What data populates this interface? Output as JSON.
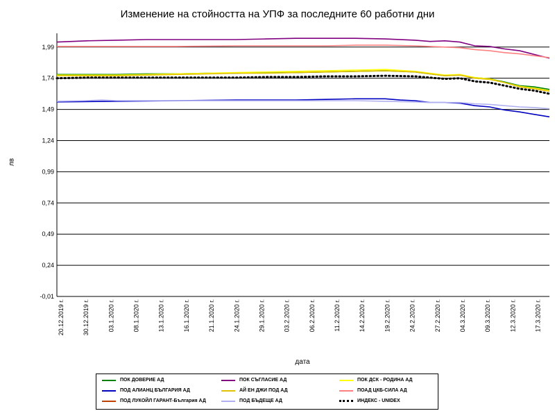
{
  "chart_data": {
    "type": "line",
    "title": "Изменение на стойността на УПФ за последните 60 работни дни",
    "xlabel": "дата",
    "ylabel": "лв",
    "ylim": [
      -0.01,
      2.1
    ],
    "yticks": [
      "-0,01",
      "0,24",
      "0,49",
      "0,74",
      "0,99",
      "1,24",
      "1,49",
      "1,74",
      "1,99"
    ],
    "ytick_values": [
      -0.01,
      0.24,
      0.49,
      0.74,
      0.99,
      1.24,
      1.49,
      1.74,
      1.99
    ],
    "grid": true,
    "legend_position": "bottom",
    "xticks": [
      "20.12.2019 г.",
      "30.12.2019 г.",
      "03.1.2020 г.",
      "08.1.2020 г.",
      "13.1.2020 г.",
      "16.1.2020 г.",
      "21.1.2020 г.",
      "24.1.2020 г.",
      "29.1.2020 г.",
      "03.2.2020 г.",
      "06.2.2020 г.",
      "11.2.2020 г.",
      "14.2.2020 г.",
      "19.2.2020 г.",
      "24.2.2020 г.",
      "27.2.2020 г.",
      "04.3.2020 г.",
      "09.3.2020 г.",
      "12.3.2020 г.",
      "17.3.2020 г."
    ],
    "series": [
      {
        "name": "ПОК ДОВЕРИЕ АД",
        "color": "#008000",
        "style": "solid",
        "points": [
          [
            0,
            1.77
          ],
          [
            4,
            1.77
          ],
          [
            8,
            1.77
          ],
          [
            12,
            1.775
          ],
          [
            16,
            1.775
          ],
          [
            20,
            1.78
          ],
          [
            24,
            1.78
          ],
          [
            28,
            1.785
          ],
          [
            32,
            1.785
          ],
          [
            36,
            1.79
          ],
          [
            40,
            1.795
          ],
          [
            44,
            1.8
          ],
          [
            48,
            1.79
          ],
          [
            50,
            1.775
          ],
          [
            52,
            1.76
          ],
          [
            54,
            1.765
          ],
          [
            56,
            1.745
          ],
          [
            58,
            1.735
          ],
          [
            60,
            1.71
          ],
          [
            62,
            1.68
          ],
          [
            64,
            1.67
          ],
          [
            66,
            1.65
          ]
        ]
      },
      {
        "name": "ПОК СЪГЛАСИЕ АД",
        "color": "#800080",
        "style": "solid",
        "points": [
          [
            0,
            2.03
          ],
          [
            4,
            2.04
          ],
          [
            8,
            2.045
          ],
          [
            12,
            2.05
          ],
          [
            16,
            2.05
          ],
          [
            20,
            2.05
          ],
          [
            24,
            2.05
          ],
          [
            28,
            2.055
          ],
          [
            32,
            2.06
          ],
          [
            36,
            2.06
          ],
          [
            40,
            2.06
          ],
          [
            44,
            2.055
          ],
          [
            48,
            2.045
          ],
          [
            50,
            2.035
          ],
          [
            52,
            2.04
          ],
          [
            54,
            2.03
          ],
          [
            56,
            2.0
          ],
          [
            58,
            1.995
          ],
          [
            60,
            1.975
          ],
          [
            62,
            1.96
          ],
          [
            64,
            1.93
          ],
          [
            66,
            1.9
          ]
        ]
      },
      {
        "name": "ПОК ДСК - РОДИНА АД",
        "color": "#ffff00",
        "style": "solid",
        "points": [
          [
            0,
            1.765
          ],
          [
            4,
            1.765
          ],
          [
            8,
            1.765
          ],
          [
            12,
            1.77
          ],
          [
            16,
            1.775
          ],
          [
            20,
            1.78
          ],
          [
            24,
            1.785
          ],
          [
            28,
            1.79
          ],
          [
            32,
            1.795
          ],
          [
            36,
            1.8
          ],
          [
            40,
            1.805
          ],
          [
            44,
            1.81
          ],
          [
            48,
            1.795
          ],
          [
            50,
            1.78
          ],
          [
            52,
            1.765
          ],
          [
            54,
            1.77
          ],
          [
            56,
            1.745
          ],
          [
            58,
            1.735
          ],
          [
            60,
            1.705
          ],
          [
            62,
            1.675
          ],
          [
            64,
            1.66
          ],
          [
            66,
            1.64
          ]
        ]
      },
      {
        "name": "ПОД АЛИАНЦ БЪЛГАРИЯ АД",
        "color": "#0000c0",
        "style": "solid",
        "points": [
          [
            0,
            1.55
          ],
          [
            8,
            1.555
          ],
          [
            16,
            1.56
          ],
          [
            24,
            1.565
          ],
          [
            32,
            1.565
          ],
          [
            36,
            1.57
          ],
          [
            40,
            1.575
          ],
          [
            44,
            1.575
          ],
          [
            46,
            1.565
          ],
          [
            48,
            1.56
          ],
          [
            50,
            1.545
          ],
          [
            52,
            1.545
          ],
          [
            54,
            1.54
          ],
          [
            56,
            1.52
          ],
          [
            58,
            1.51
          ],
          [
            60,
            1.485
          ],
          [
            62,
            1.47
          ],
          [
            64,
            1.45
          ],
          [
            66,
            1.43
          ]
        ]
      },
      {
        "name": "АЙ ЕН ДЖИ ПОД АД",
        "color": "#e0c000",
        "style": "solid",
        "points": [
          [
            0,
            1.76
          ],
          [
            4,
            1.76
          ],
          [
            8,
            1.76
          ],
          [
            12,
            1.765
          ],
          [
            16,
            1.77
          ],
          [
            20,
            1.775
          ],
          [
            24,
            1.78
          ],
          [
            28,
            1.78
          ],
          [
            32,
            1.785
          ],
          [
            36,
            1.79
          ],
          [
            40,
            1.795
          ],
          [
            44,
            1.8
          ],
          [
            48,
            1.79
          ],
          [
            50,
            1.775
          ],
          [
            52,
            1.76
          ],
          [
            54,
            1.765
          ],
          [
            56,
            1.74
          ],
          [
            58,
            1.73
          ],
          [
            60,
            1.705
          ],
          [
            62,
            1.67
          ],
          [
            64,
            1.655
          ],
          [
            66,
            1.635
          ]
        ]
      },
      {
        "name": "ПОАД ЦКБ-СИЛА АД",
        "color": "#ff8080",
        "style": "solid",
        "points": [
          [
            0,
            1.995
          ],
          [
            8,
            1.995
          ],
          [
            16,
            1.995
          ],
          [
            24,
            2.0
          ],
          [
            32,
            2.0
          ],
          [
            36,
            2.0
          ],
          [
            40,
            2.005
          ],
          [
            44,
            2.005
          ],
          [
            48,
            2.0
          ],
          [
            50,
            1.995
          ],
          [
            52,
            1.99
          ],
          [
            54,
            1.985
          ],
          [
            56,
            1.97
          ],
          [
            58,
            1.96
          ],
          [
            60,
            1.945
          ],
          [
            62,
            1.935
          ],
          [
            64,
            1.92
          ],
          [
            66,
            1.905
          ]
        ]
      },
      {
        "name": "ПОД ЛУКОЙЛ ГАРАНТ-България АД",
        "color": "#c04000",
        "style": "solid",
        "points": []
      },
      {
        "name": "ПОД БЪДЕЩЕ АД",
        "color": "#b0b0f0",
        "style": "solid",
        "points": [
          [
            0,
            1.555
          ],
          [
            4,
            1.56
          ],
          [
            6,
            1.565
          ],
          [
            8,
            1.56
          ],
          [
            16,
            1.56
          ],
          [
            24,
            1.56
          ],
          [
            32,
            1.56
          ],
          [
            40,
            1.56
          ],
          [
            44,
            1.555
          ],
          [
            48,
            1.55
          ],
          [
            50,
            1.545
          ],
          [
            52,
            1.545
          ],
          [
            54,
            1.545
          ],
          [
            56,
            1.535
          ],
          [
            58,
            1.53
          ],
          [
            60,
            1.52
          ],
          [
            62,
            1.51
          ],
          [
            64,
            1.505
          ],
          [
            66,
            1.495
          ]
        ]
      },
      {
        "name": "ИНДЕКС - UNIDEX",
        "color": "#000000",
        "style": "dotted",
        "points": [
          [
            0,
            1.74
          ],
          [
            4,
            1.745
          ],
          [
            8,
            1.745
          ],
          [
            12,
            1.745
          ],
          [
            16,
            1.745
          ],
          [
            20,
            1.745
          ],
          [
            24,
            1.745
          ],
          [
            28,
            1.75
          ],
          [
            32,
            1.75
          ],
          [
            36,
            1.755
          ],
          [
            40,
            1.755
          ],
          [
            44,
            1.76
          ],
          [
            48,
            1.755
          ],
          [
            50,
            1.745
          ],
          [
            52,
            1.735
          ],
          [
            54,
            1.74
          ],
          [
            56,
            1.715
          ],
          [
            58,
            1.705
          ],
          [
            60,
            1.68
          ],
          [
            62,
            1.655
          ],
          [
            64,
            1.64
          ],
          [
            66,
            1.615
          ]
        ]
      }
    ]
  }
}
